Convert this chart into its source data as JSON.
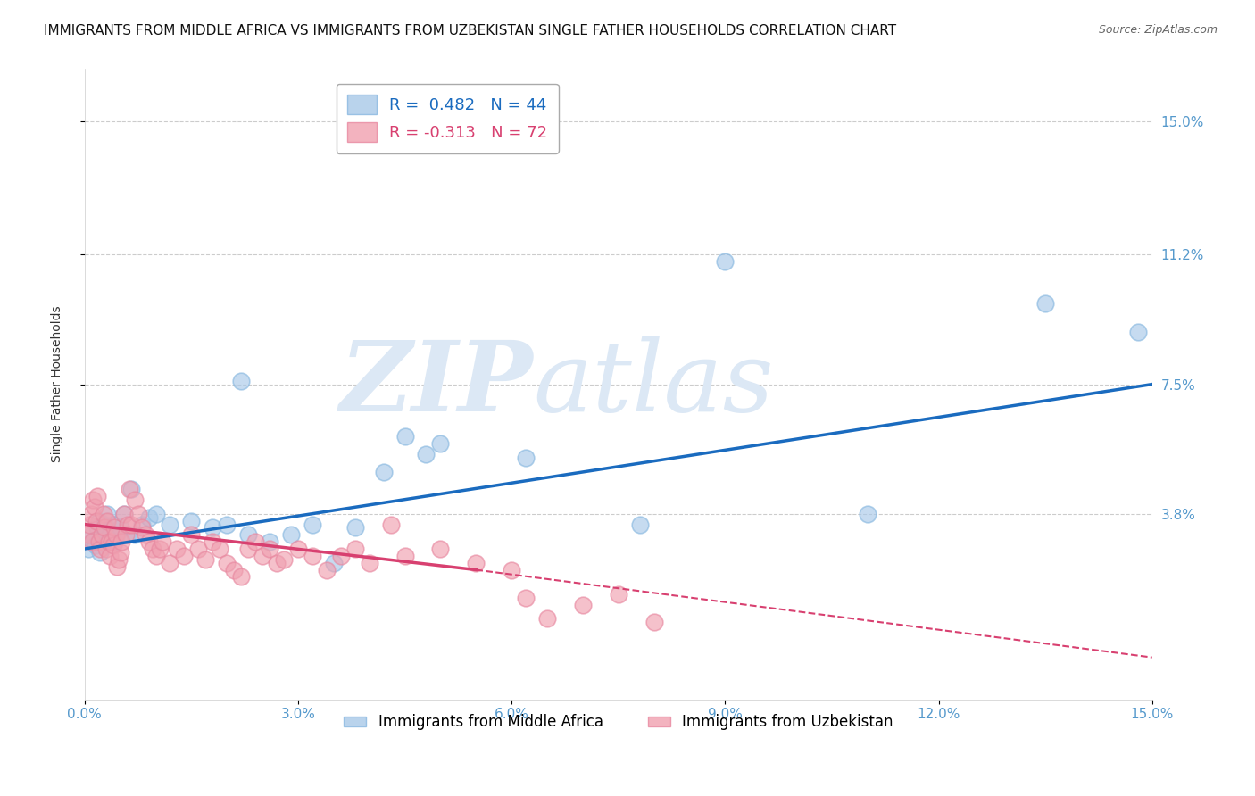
{
  "title": "IMMIGRANTS FROM MIDDLE AFRICA VS IMMIGRANTS FROM UZBEKISTAN SINGLE FATHER HOUSEHOLDS CORRELATION CHART",
  "source": "Source: ZipAtlas.com",
  "ylabel": "Single Father Households",
  "xlim": [
    0.0,
    15.0
  ],
  "ylim": [
    -1.5,
    16.5
  ],
  "yticks": [
    3.8,
    7.5,
    11.2,
    15.0
  ],
  "xticks": [
    0.0,
    3.0,
    6.0,
    9.0,
    12.0,
    15.0
  ],
  "series1_label": "Immigrants from Middle Africa",
  "series1_color": "#a8c8e8",
  "series1_R": "0.482",
  "series1_N": "44",
  "series2_label": "Immigrants from Uzbekistan",
  "series2_color": "#f0a0b0",
  "series2_R": "-0.313",
  "series2_N": "72",
  "blue_line_color": "#1a6bbf",
  "pink_line_color": "#d84070",
  "watermark_zip": "ZIP",
  "watermark_atlas": "atlas",
  "watermark_color": "#dce8f5",
  "background_color": "#ffffff",
  "grid_color": "#cccccc",
  "title_fontsize": 11,
  "axis_label_fontsize": 10,
  "tick_fontsize": 11,
  "legend_fontsize": 13,
  "blue_scatter_x": [
    0.05,
    0.1,
    0.12,
    0.15,
    0.18,
    0.2,
    0.22,
    0.25,
    0.28,
    0.3,
    0.32,
    0.35,
    0.4,
    0.42,
    0.45,
    0.5,
    0.55,
    0.6,
    0.65,
    0.7,
    0.8,
    0.9,
    1.0,
    1.2,
    1.5,
    1.8,
    2.0,
    2.3,
    2.6,
    2.9,
    3.2,
    3.5,
    3.8,
    4.2,
    4.5,
    5.0,
    6.2,
    7.8,
    9.0,
    11.0,
    13.5,
    14.8,
    2.2,
    4.8
  ],
  "blue_scatter_y": [
    2.8,
    3.2,
    3.0,
    2.9,
    3.4,
    3.6,
    2.7,
    3.1,
    3.5,
    3.3,
    3.8,
    3.2,
    3.5,
    3.0,
    3.2,
    3.4,
    3.8,
    3.2,
    4.5,
    3.2,
    3.5,
    3.7,
    3.8,
    3.5,
    3.6,
    3.4,
    3.5,
    3.2,
    3.0,
    3.2,
    3.5,
    2.4,
    3.4,
    5.0,
    6.0,
    5.8,
    5.4,
    3.5,
    11.0,
    3.8,
    9.8,
    9.0,
    7.6,
    5.5
  ],
  "pink_scatter_x": [
    0.05,
    0.07,
    0.09,
    0.1,
    0.12,
    0.14,
    0.16,
    0.18,
    0.2,
    0.22,
    0.24,
    0.26,
    0.28,
    0.3,
    0.32,
    0.34,
    0.36,
    0.38,
    0.4,
    0.42,
    0.44,
    0.46,
    0.48,
    0.5,
    0.52,
    0.55,
    0.58,
    0.6,
    0.63,
    0.66,
    0.7,
    0.75,
    0.8,
    0.85,
    0.9,
    0.95,
    1.0,
    1.05,
    1.1,
    1.2,
    1.3,
    1.4,
    1.5,
    1.6,
    1.7,
    1.8,
    1.9,
    2.0,
    2.1,
    2.2,
    2.3,
    2.4,
    2.5,
    2.6,
    2.7,
    2.8,
    3.0,
    3.2,
    3.4,
    3.6,
    3.8,
    4.0,
    4.3,
    4.5,
    5.0,
    5.5,
    6.0,
    6.2,
    6.5,
    7.0,
    7.5,
    8.0
  ],
  "pink_scatter_y": [
    3.2,
    3.5,
    3.8,
    3.0,
    4.2,
    4.0,
    3.6,
    4.3,
    3.0,
    2.8,
    3.2,
    3.8,
    3.4,
    2.8,
    3.6,
    3.0,
    2.6,
    3.0,
    2.9,
    3.4,
    3.2,
    2.3,
    2.5,
    2.7,
    3.0,
    3.8,
    3.2,
    3.5,
    4.5,
    3.5,
    4.2,
    3.8,
    3.4,
    3.2,
    3.0,
    2.8,
    2.6,
    2.8,
    3.0,
    2.4,
    2.8,
    2.6,
    3.2,
    2.8,
    2.5,
    3.0,
    2.8,
    2.4,
    2.2,
    2.0,
    2.8,
    3.0,
    2.6,
    2.8,
    2.4,
    2.5,
    2.8,
    2.6,
    2.2,
    2.6,
    2.8,
    2.4,
    3.5,
    2.6,
    2.8,
    2.4,
    2.2,
    1.4,
    0.8,
    1.2,
    1.5,
    0.7
  ],
  "blue_line_x_start": 0.0,
  "blue_line_x_end": 15.0,
  "blue_line_y_start": 2.8,
  "blue_line_y_end": 7.5,
  "pink_line_x_solid_start": 0.0,
  "pink_line_x_solid_end": 5.5,
  "pink_line_y_solid_start": 3.5,
  "pink_line_y_solid_end": 2.2,
  "pink_line_x_dashed_start": 5.5,
  "pink_line_x_dashed_end": 15.0,
  "pink_line_y_dashed_start": 2.2,
  "pink_line_y_dashed_end": -0.3
}
